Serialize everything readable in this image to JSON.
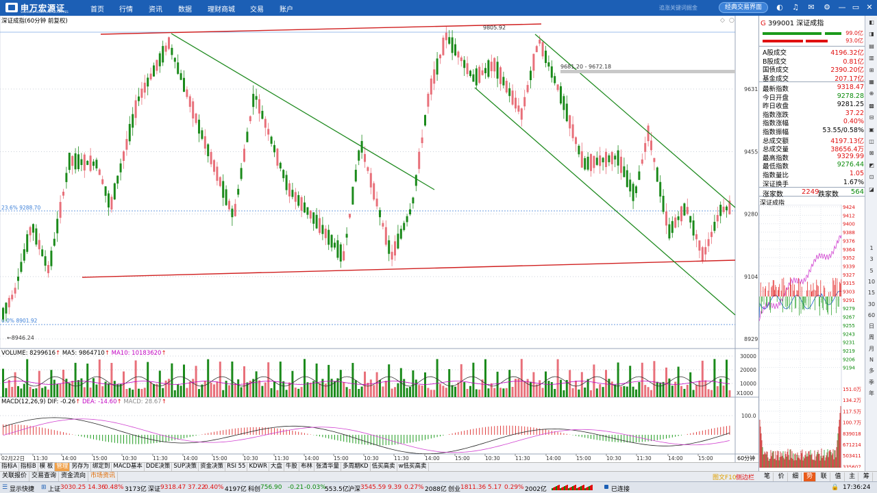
{
  "app": {
    "logo_cn": "申万宏源证券",
    "logo_en": "SHENWAN HONGYUAN SECURITIES",
    "nav": [
      "首页",
      "行情",
      "资讯",
      "数据",
      "理财商城",
      "交易",
      "账户"
    ],
    "marquee": "追涨关键词掘金",
    "classic_button": "经典交易界面",
    "icons": [
      "settings-icon",
      "bell-icon",
      "headset-icon",
      "mail-icon",
      "gear-icon",
      "minimize-icon",
      "restore-icon",
      "close-icon"
    ]
  },
  "chart": {
    "title": "深证成指(60分钟 前复权)",
    "price_axis": [
      "9631",
      "9455",
      "9280",
      "9104",
      "8929"
    ],
    "price_labels": {
      "high_label": "9805.92",
      "low_label": "8946.24",
      "fib_236": "23.6% 9288.70",
      "fib_0": "0.0% 8901.92",
      "range_label": "9681.20 - 9672.18"
    },
    "volume_label": "VOLUME: 8299616",
    "ma5_label": "MA5: 9864710",
    "ma10_label": "MA10: 10183620",
    "volume_axis": [
      "30000",
      "20000",
      "10000",
      "X1000"
    ],
    "macd_label": "MACD(12,26,9)",
    "dif_label": "DIF: -0.26",
    "dea_label": "DEA: -14.60",
    "macd_value_label": "MACD: 28.67",
    "macd_axis": [
      "100.0"
    ],
    "time_axis": [
      "02月22日",
      "11:30",
      "14:00",
      "15:00",
      "10:30",
      "11:30",
      "14:00",
      "15:00",
      "10:30",
      "11:30",
      "14:00",
      "15:00",
      "10:30",
      "11:30",
      "14:00",
      "15:00",
      "10:30",
      "11:30",
      "14:00",
      "15:00",
      "10:30",
      "11:30",
      "14:00",
      "15:00"
    ],
    "period_label": "60分钟",
    "indicator_tabs": [
      "指标A",
      "指标B",
      "模 板",
      "管理",
      "另存为",
      "绑定到",
      "MACD基本",
      "DDE决策",
      "SUP决策",
      "资金决策",
      "RSI 55",
      "KDWR",
      "大盘",
      "牛股",
      "布林",
      "张清华量",
      "多周期KD",
      "低买高卖",
      "w低买高卖"
    ],
    "active_indicator_tab": "管理",
    "bottom_tabs": [
      "关联报价",
      "交易查询",
      "资金流向",
      "市场资讯"
    ],
    "bottom_right_labels": [
      "图文F10",
      "侧边栏"
    ],
    "colors": {
      "up": "#e8707a",
      "down": "#1b8a1b",
      "trendline_red": "#d01e1e",
      "trendline_green": "#1f8a1f"
    }
  },
  "quote": {
    "code_line": "399001 深证成指",
    "bar_pct_top": "99.0亿",
    "bar_pct_bottom": "93.0亿",
    "rows": [
      {
        "label": "A股成交",
        "value": "4196.32亿",
        "color": "red"
      },
      {
        "label": "B股成交",
        "value": "0.81亿",
        "color": "red"
      },
      {
        "label": "国债成交",
        "value": "2390.20亿",
        "color": "red"
      },
      {
        "label": "基金成交",
        "value": "207.17亿",
        "color": "red"
      },
      {
        "label": "最新指数",
        "value": "9318.47",
        "color": "red"
      },
      {
        "label": "今日开盘",
        "value": "9278.28",
        "color": "green"
      },
      {
        "label": "昨日收盘",
        "value": "9281.25",
        "color": "black"
      },
      {
        "label": "指数涨跌",
        "value": "37.22",
        "color": "red"
      },
      {
        "label": "指数涨幅",
        "value": "0.40%",
        "color": "red"
      },
      {
        "label": "指数振幅",
        "value": "53.55/0.58%",
        "color": "black"
      },
      {
        "label": "总成交额",
        "value": "4197.13亿",
        "color": "red"
      },
      {
        "label": "总成交量",
        "value": "38656.4万",
        "color": "red"
      },
      {
        "label": "最高指数",
        "value": "9329.99",
        "color": "red"
      },
      {
        "label": "最低指数",
        "value": "9276.44",
        "color": "green"
      },
      {
        "label": "指数量比",
        "value": "1.05",
        "color": "red"
      },
      {
        "label": "深证换手",
        "value": "1.67%",
        "color": "black"
      }
    ],
    "rise_label": "涨家数",
    "rise_count": "2249",
    "fall_label": "跌家数",
    "fall_count": "564",
    "intraday_title": "深证成指",
    "intraday_axis": [
      "9424",
      "9412",
      "9400",
      "9388",
      "9376",
      "9364",
      "9352",
      "9339",
      "9327",
      "9315",
      "9303",
      "9291",
      "9279",
      "9267",
      "9255",
      "9243",
      "9231",
      "9219",
      "9206",
      "9194"
    ],
    "intraday_vol_axis": [
      "151.0万",
      "134.2万",
      "117.5万",
      "100.7万",
      "839018",
      "671214",
      "503411",
      "335607",
      "167804"
    ],
    "side_tabs": [
      "笔",
      "价",
      "细",
      "势",
      "联",
      "值",
      "主",
      "筹"
    ],
    "active_side_tab": "势"
  },
  "right_strip": [
    "1",
    "3",
    "5",
    "10",
    "15",
    "30",
    "60",
    "日",
    "周",
    "月",
    "N",
    "多",
    "季",
    "年"
  ],
  "status": {
    "show_quick": "显示快捷",
    "items": [
      {
        "name": "上证",
        "price": "3030.25",
        "chg": "14.36",
        "pct": "0.48%",
        "amt": "3173亿"
      },
      {
        "name": "深证",
        "price": "9318.47",
        "chg": "37.22",
        "pct": "0.40%",
        "amt": "4197亿"
      },
      {
        "name": "科创",
        "price": "756.90",
        "chg": "-0.21",
        "pct": "-0.03%",
        "amt": "553.5亿"
      },
      {
        "name": "沪深",
        "price": "3545.59",
        "chg": "9.39",
        "pct": "0.27%",
        "amt": "2088亿"
      },
      {
        "name": "创业",
        "price": "1811.36",
        "chg": "5.17",
        "pct": "0.29%",
        "amt": "2002亿"
      }
    ],
    "connected": "已连接",
    "time": "17:36:24"
  }
}
